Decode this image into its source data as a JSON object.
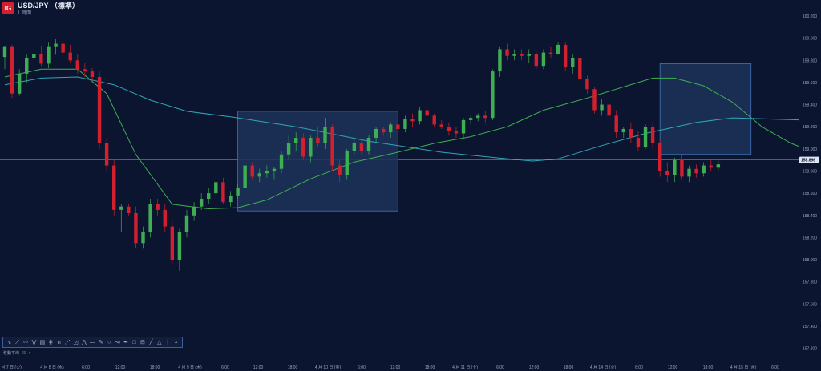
{
  "header": {
    "logo": "IG",
    "symbol": "USD/JPY （標準）",
    "timeframe": "1 時間"
  },
  "toolbar": {
    "icons": [
      "arrow-icon",
      "line-tool-icon",
      "pen-icon",
      "wave-icon",
      "fibonacci-icon",
      "channel-icon",
      "pitchfork-icon",
      "fan-icon",
      "gann-icon",
      "polyline-icon",
      "horizontal-line-icon",
      "brush-icon",
      "circle-icon",
      "path-icon",
      "text-icon",
      "rectangle-icon",
      "ruler-icon",
      "trend-line-icon",
      "triangle-icon"
    ],
    "glyphs": [
      "↘",
      "⟋",
      "〰",
      "⋁",
      "▤",
      "⋕",
      "⋔",
      "⋰",
      "◿",
      "⋀",
      "—",
      "✎",
      "○",
      "↝",
      "✒",
      "□",
      "⊟",
      "╱",
      "△"
    ],
    "separator": "|",
    "close": "×"
  },
  "legend": {
    "label": "移動平均",
    "value": "20",
    "remove": "×"
  },
  "colors": {
    "bg": "#0c1530",
    "up": "#3fae52",
    "down": "#d2202e",
    "ma_fast": "#3fae52",
    "ma_slow": "#2ea6b8",
    "zone": "#1c3258",
    "zone_border": "#4273b8"
  },
  "chart_data": {
    "type": "candlestick",
    "ylim": [
      157.1,
      160.3
    ],
    "yticks": [
      "160.200",
      "160.000",
      "159.800",
      "159.600",
      "159.400",
      "159.200",
      "159.000",
      "158.800",
      "158.600",
      "158.400",
      "158.200",
      "158.000",
      "157.800",
      "157.600",
      "157.400",
      "157.200"
    ],
    "xticks": [
      "4 月 7 日 (火)",
      "4 月 8 日 (水)",
      "6:00",
      "12:00",
      "18:00",
      "4 月 9 日 (木)",
      "6:00",
      "12:00",
      "18:00",
      "4 月 10 日 (金)",
      "6:00",
      "12:00",
      "18:00",
      "4 月 11 日 (土)",
      "6:00",
      "12:00",
      "18:00",
      "4 月 14 日 (火)",
      "6:00",
      "12:00",
      "18:00",
      "4 月 15 日 (水)",
      "6:00"
    ],
    "current_price": "158.896",
    "reference_line": 158.9,
    "zones": [
      {
        "x0": 64,
        "x1": 108,
        "y0": 158.44,
        "y1": 159.34
      },
      {
        "x0": 180,
        "x1": 205,
        "y0": 158.95,
        "y1": 159.77
      }
    ],
    "ma_fast": [
      [
        0,
        159.65
      ],
      [
        10,
        159.72
      ],
      [
        20,
        159.72
      ],
      [
        28,
        159.5
      ],
      [
        36,
        158.95
      ],
      [
        46,
        158.5
      ],
      [
        56,
        158.46
      ],
      [
        64,
        158.47
      ],
      [
        72,
        158.54
      ],
      [
        84,
        158.73
      ],
      [
        96,
        158.88
      ],
      [
        108,
        158.97
      ],
      [
        118,
        159.05
      ],
      [
        128,
        159.11
      ],
      [
        138,
        159.2
      ],
      [
        148,
        159.35
      ],
      [
        160,
        159.46
      ],
      [
        170,
        159.56
      ],
      [
        178,
        159.64
      ],
      [
        184,
        159.64
      ],
      [
        192,
        159.57
      ],
      [
        200,
        159.42
      ],
      [
        208,
        159.2
      ],
      [
        216,
        159.05
      ],
      [
        224,
        158.95
      ],
      [
        230,
        158.93
      ]
    ],
    "ma_slow": [
      [
        0,
        159.58
      ],
      [
        10,
        159.64
      ],
      [
        20,
        159.65
      ],
      [
        30,
        159.58
      ],
      [
        40,
        159.44
      ],
      [
        50,
        159.34
      ],
      [
        62,
        159.29
      ],
      [
        80,
        159.2
      ],
      [
        100,
        159.07
      ],
      [
        120,
        158.97
      ],
      [
        135,
        158.92
      ],
      [
        145,
        158.89
      ],
      [
        152,
        158.91
      ],
      [
        164,
        159.03
      ],
      [
        176,
        159.14
      ],
      [
        190,
        159.24
      ],
      [
        200,
        159.28
      ],
      [
        210,
        159.27
      ],
      [
        220,
        159.26
      ],
      [
        230,
        159.25
      ]
    ],
    "candles": [
      [
        0,
        159.83,
        159.93,
        159.72,
        159.92
      ],
      [
        2,
        159.92,
        159.94,
        159.46,
        159.5
      ],
      [
        4,
        159.5,
        159.72,
        159.48,
        159.68
      ],
      [
        6,
        159.68,
        159.85,
        159.6,
        159.82
      ],
      [
        8,
        159.82,
        159.9,
        159.76,
        159.86
      ],
      [
        10,
        159.86,
        159.93,
        159.75,
        159.77
      ],
      [
        12,
        159.77,
        159.96,
        159.73,
        159.92
      ],
      [
        14,
        159.92,
        159.99,
        159.85,
        159.95
      ],
      [
        16,
        159.95,
        159.96,
        159.85,
        159.87
      ],
      [
        18,
        159.87,
        159.94,
        159.78,
        159.8
      ],
      [
        20,
        159.8,
        159.86,
        159.68,
        159.72
      ],
      [
        22,
        159.72,
        159.78,
        159.65,
        159.7
      ],
      [
        24,
        159.7,
        159.73,
        159.6,
        159.65
      ],
      [
        26,
        159.65,
        159.7,
        159.0,
        159.05
      ],
      [
        28,
        159.05,
        159.1,
        158.8,
        158.85
      ],
      [
        30,
        158.85,
        158.9,
        158.4,
        158.45
      ],
      [
        32,
        158.45,
        158.5,
        158.25,
        158.48
      ],
      [
        34,
        158.48,
        158.5,
        158.4,
        158.42
      ],
      [
        36,
        158.42,
        158.48,
        158.1,
        158.15
      ],
      [
        38,
        158.15,
        158.3,
        158.1,
        158.25
      ],
      [
        40,
        158.25,
        158.55,
        158.2,
        158.5
      ],
      [
        42,
        158.5,
        158.55,
        158.4,
        158.45
      ],
      [
        44,
        158.45,
        158.5,
        158.25,
        158.3
      ],
      [
        46,
        158.3,
        158.35,
        157.95,
        158.0
      ],
      [
        48,
        158.0,
        158.28,
        157.9,
        158.25
      ],
      [
        50,
        158.25,
        158.45,
        158.2,
        158.4
      ],
      [
        52,
        158.4,
        158.52,
        158.35,
        158.48
      ],
      [
        54,
        158.48,
        158.6,
        158.45,
        158.55
      ],
      [
        56,
        158.55,
        158.65,
        158.5,
        158.6
      ],
      [
        58,
        158.6,
        158.75,
        158.55,
        158.7
      ],
      [
        60,
        158.7,
        158.74,
        158.5,
        158.52
      ],
      [
        62,
        158.52,
        158.62,
        158.48,
        158.58
      ],
      [
        64,
        158.58,
        158.68,
        158.55,
        158.65
      ],
      [
        66,
        158.65,
        158.87,
        158.6,
        158.85
      ],
      [
        68,
        158.85,
        158.88,
        158.72,
        158.75
      ],
      [
        70,
        158.75,
        158.82,
        158.7,
        158.78
      ],
      [
        72,
        158.78,
        158.85,
        158.74,
        158.8
      ],
      [
        74,
        158.8,
        158.84,
        158.72,
        158.82
      ],
      [
        76,
        158.82,
        158.98,
        158.78,
        158.95
      ],
      [
        78,
        158.95,
        159.12,
        158.9,
        159.05
      ],
      [
        80,
        159.05,
        159.15,
        158.98,
        159.1
      ],
      [
        82,
        159.1,
        159.14,
        158.9,
        158.93
      ],
      [
        84,
        158.93,
        159.12,
        158.88,
        159.1
      ],
      [
        86,
        159.1,
        159.2,
        159.02,
        159.05
      ],
      [
        88,
        159.05,
        159.28,
        159.0,
        159.2
      ],
      [
        90,
        159.2,
        159.22,
        158.8,
        158.85
      ],
      [
        92,
        158.85,
        158.9,
        158.7,
        158.76
      ],
      [
        94,
        158.76,
        159.0,
        158.72,
        158.98
      ],
      [
        96,
        158.98,
        159.1,
        158.95,
        159.05
      ],
      [
        98,
        159.05,
        159.08,
        158.95,
        158.98
      ],
      [
        100,
        158.98,
        159.12,
        158.95,
        159.1
      ],
      [
        102,
        159.1,
        159.2,
        159.05,
        159.18
      ],
      [
        104,
        159.18,
        159.2,
        159.12,
        159.15
      ],
      [
        106,
        159.15,
        159.24,
        159.1,
        159.22
      ],
      [
        108,
        159.22,
        159.28,
        159.1,
        159.18
      ],
      [
        110,
        159.18,
        159.3,
        159.15,
        159.27
      ],
      [
        112,
        159.27,
        159.32,
        159.2,
        159.25
      ],
      [
        114,
        159.25,
        159.38,
        159.22,
        159.35
      ],
      [
        116,
        159.35,
        159.38,
        159.28,
        159.3
      ],
      [
        118,
        159.3,
        159.32,
        159.2,
        159.22
      ],
      [
        120,
        159.22,
        159.26,
        159.18,
        159.2
      ],
      [
        122,
        159.2,
        159.24,
        159.12,
        159.16
      ],
      [
        124,
        159.16,
        159.2,
        159.1,
        159.14
      ],
      [
        126,
        159.14,
        159.28,
        159.1,
        159.26
      ],
      [
        128,
        159.26,
        159.3,
        159.22,
        159.28
      ],
      [
        130,
        159.28,
        159.32,
        159.25,
        159.3
      ],
      [
        132,
        159.3,
        159.34,
        159.24,
        159.28
      ],
      [
        134,
        159.28,
        159.72,
        159.26,
        159.7
      ],
      [
        136,
        159.7,
        159.92,
        159.65,
        159.9
      ],
      [
        138,
        159.9,
        159.95,
        159.8,
        159.84
      ],
      [
        140,
        159.84,
        159.9,
        159.8,
        159.86
      ],
      [
        142,
        159.86,
        159.9,
        159.8,
        159.84
      ],
      [
        144,
        159.84,
        159.9,
        159.78,
        159.86
      ],
      [
        146,
        159.86,
        159.88,
        159.72,
        159.75
      ],
      [
        148,
        159.75,
        159.9,
        159.72,
        159.87
      ],
      [
        150,
        159.87,
        159.92,
        159.82,
        159.86
      ],
      [
        152,
        159.86,
        159.96,
        159.85,
        159.94
      ],
      [
        154,
        159.94,
        159.96,
        159.7,
        159.74
      ],
      [
        156,
        159.74,
        159.86,
        159.68,
        159.82
      ],
      [
        158,
        159.82,
        159.86,
        159.6,
        159.63
      ],
      [
        160,
        159.63,
        159.66,
        159.5,
        159.54
      ],
      [
        162,
        159.54,
        159.56,
        159.32,
        159.35
      ],
      [
        164,
        159.35,
        159.45,
        159.3,
        159.4
      ],
      [
        166,
        159.4,
        159.45,
        159.25,
        159.3
      ],
      [
        168,
        159.3,
        159.35,
        159.1,
        159.15
      ],
      [
        170,
        159.15,
        159.2,
        159.1,
        159.18
      ],
      [
        172,
        159.18,
        159.24,
        159.05,
        159.1
      ],
      [
        174,
        159.1,
        159.16,
        158.98,
        159.02
      ],
      [
        176,
        159.02,
        159.22,
        159.0,
        159.2
      ],
      [
        178,
        159.2,
        159.24,
        159.0,
        159.05
      ],
      [
        180,
        159.05,
        159.08,
        158.75,
        158.8
      ],
      [
        182,
        158.8,
        158.88,
        158.7,
        158.76
      ],
      [
        184,
        158.76,
        158.92,
        158.7,
        158.9
      ],
      [
        186,
        158.9,
        158.95,
        158.72,
        158.75
      ],
      [
        188,
        158.75,
        158.85,
        158.7,
        158.82
      ],
      [
        190,
        158.82,
        158.86,
        158.74,
        158.78
      ],
      [
        192,
        158.78,
        158.88,
        158.75,
        158.85
      ],
      [
        194,
        158.85,
        158.9,
        158.8,
        158.83
      ],
      [
        196,
        158.83,
        158.9,
        158.8,
        158.86
      ]
    ]
  }
}
